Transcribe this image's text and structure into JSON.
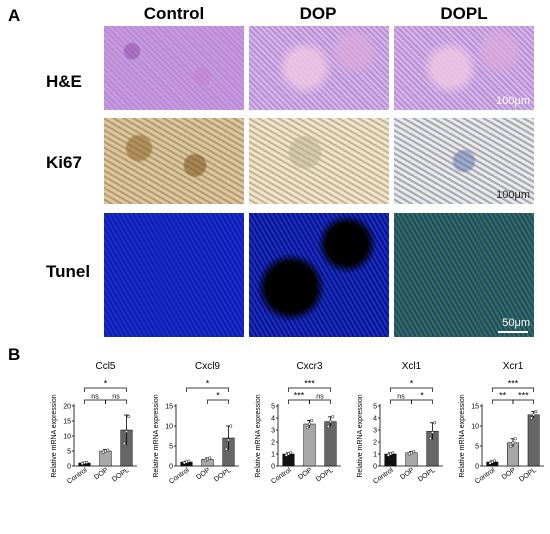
{
  "panel_a_label": "A",
  "panel_b_label": "B",
  "columns": [
    "Control",
    "DOP",
    "DOPL"
  ],
  "rows": [
    "H&E",
    "Ki67",
    "Tunel"
  ],
  "scale_labels": {
    "he": "100μm",
    "ki67": "100μm",
    "tunel": "50μm"
  },
  "chart_data": [
    {
      "type": "bar",
      "title": "Ccl5",
      "ylabel": "Relative mRNA expression",
      "categories": [
        "Control",
        "DOP",
        "DOPL"
      ],
      "values": [
        1,
        5,
        12
      ],
      "errors": [
        0.3,
        0.5,
        5
      ],
      "points": [
        [
          0.8,
          1.1,
          1.2
        ],
        [
          4.6,
          5.0,
          5.3
        ],
        [
          7.5,
          11.5,
          16.5
        ]
      ],
      "ylim": [
        0,
        20
      ],
      "yticks": [
        0,
        5,
        10,
        15,
        20
      ],
      "sig": [
        {
          "from": 0,
          "to": 1,
          "label": "ns",
          "level": 0
        },
        {
          "from": 1,
          "to": 2,
          "label": "ns",
          "level": 0
        },
        {
          "from": 0,
          "to": 2,
          "label": "*",
          "level": 1
        }
      ]
    },
    {
      "type": "bar",
      "title": "Cxcl9",
      "ylabel": "Relative mRNA expression",
      "categories": [
        "Control",
        "DOP",
        "DOPL"
      ],
      "values": [
        1,
        1.7,
        7
      ],
      "errors": [
        0.2,
        0.3,
        3
      ],
      "points": [
        [
          0.8,
          1.0,
          1.2
        ],
        [
          1.4,
          1.7,
          2.0
        ],
        [
          4.2,
          6.5,
          10.0
        ]
      ],
      "ylim": [
        0,
        15
      ],
      "yticks": [
        0,
        5,
        10,
        15
      ],
      "sig": [
        {
          "from": 1,
          "to": 2,
          "label": "*",
          "level": 0
        },
        {
          "from": 0,
          "to": 2,
          "label": "*",
          "level": 1
        }
      ]
    },
    {
      "type": "bar",
      "title": "Cxcr3",
      "ylabel": "Relative mRNA expression",
      "categories": [
        "Control",
        "DOP",
        "DOPL"
      ],
      "values": [
        1,
        3.5,
        3.7
      ],
      "errors": [
        0.1,
        0.3,
        0.4
      ],
      "points": [
        [
          0.9,
          1.0,
          1.1
        ],
        [
          3.2,
          3.5,
          3.8
        ],
        [
          3.3,
          3.7,
          4.1
        ]
      ],
      "ylim": [
        0,
        5
      ],
      "yticks": [
        0,
        1,
        2,
        3,
        4,
        5
      ],
      "sig": [
        {
          "from": 0,
          "to": 1,
          "label": "***",
          "level": 0
        },
        {
          "from": 1,
          "to": 2,
          "label": "ns",
          "level": 0
        },
        {
          "from": 0,
          "to": 2,
          "label": "***",
          "level": 1
        }
      ]
    },
    {
      "type": "bar",
      "title": "Xcl1",
      "ylabel": "Relative mRNA expression",
      "categories": [
        "Control",
        "DOP",
        "DOPL"
      ],
      "values": [
        1,
        1.1,
        2.9
      ],
      "errors": [
        0.1,
        0.1,
        0.7
      ],
      "points": [
        [
          0.9,
          1.0,
          1.1
        ],
        [
          1.0,
          1.1,
          1.2
        ],
        [
          2.3,
          2.8,
          3.6
        ]
      ],
      "ylim": [
        0,
        5
      ],
      "yticks": [
        0,
        1,
        2,
        3,
        4,
        5
      ],
      "sig": [
        {
          "from": 0,
          "to": 1,
          "label": "ns",
          "level": 0
        },
        {
          "from": 1,
          "to": 2,
          "label": "*",
          "level": 0
        },
        {
          "from": 0,
          "to": 2,
          "label": "*",
          "level": 1
        }
      ]
    },
    {
      "type": "bar",
      "title": "Xcr1",
      "ylabel": "Relative mRNA expression",
      "categories": [
        "Control",
        "DOP",
        "DOPL"
      ],
      "values": [
        1,
        5.8,
        12.8
      ],
      "errors": [
        0.3,
        1.0,
        0.8
      ],
      "points": [
        [
          0.7,
          1.0,
          1.3
        ],
        [
          4.9,
          5.8,
          6.8
        ],
        [
          12.0,
          12.8,
          13.6
        ]
      ],
      "ylim": [
        0,
        15
      ],
      "yticks": [
        0,
        5,
        10,
        15
      ],
      "sig": [
        {
          "from": 0,
          "to": 1,
          "label": "**",
          "level": 0
        },
        {
          "from": 1,
          "to": 2,
          "label": "***",
          "level": 0
        },
        {
          "from": 0,
          "to": 2,
          "label": "***",
          "level": 1
        }
      ]
    }
  ],
  "bar_colors": [
    "#111111",
    "#a8a8a8",
    "#666666"
  ]
}
